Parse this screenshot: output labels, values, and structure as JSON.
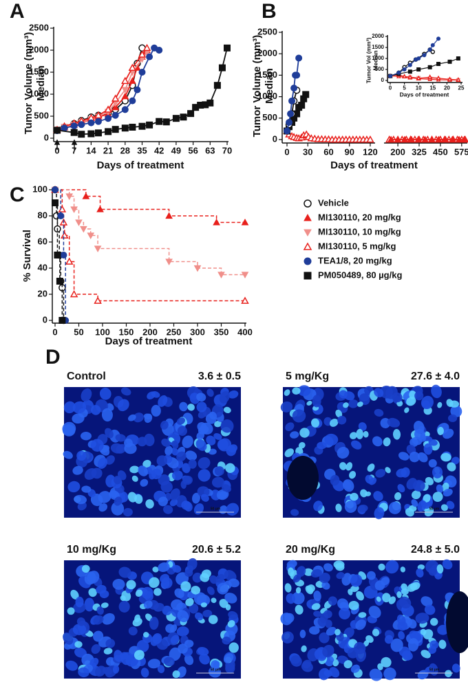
{
  "chart_data": [
    {
      "type": "line",
      "panel": "A",
      "ylabel": "Tumor Volume (mm³)",
      "ylabel2": "Median",
      "xlabel": "Days of treatment",
      "xlim": [
        0,
        70
      ],
      "xticks": [
        0,
        7,
        14,
        21,
        28,
        35,
        42,
        49,
        56,
        63,
        70
      ],
      "ylim": [
        0,
        2500
      ],
      "yticks": [
        0,
        500,
        1000,
        1500,
        2000,
        2500
      ],
      "series": [
        {
          "marker": "circle-open",
          "color": "#111111",
          "x": [
            0,
            3,
            7,
            10,
            14,
            17,
            21,
            24,
            28,
            31,
            33,
            35
          ],
          "values": [
            180,
            250,
            330,
            400,
            480,
            520,
            560,
            650,
            850,
            1200,
            1700,
            2050
          ]
        },
        {
          "marker": "triangle",
          "color": "#e8201c",
          "x": [
            0,
            3,
            7,
            10,
            14,
            17,
            21,
            24,
            28,
            31,
            33,
            35,
            37
          ],
          "values": [
            190,
            240,
            300,
            350,
            420,
            480,
            550,
            700,
            950,
            1300,
            1600,
            1850,
            2000
          ]
        },
        {
          "marker": "triangle-down",
          "color": "#f08f8a",
          "x": [
            0,
            3,
            7,
            10,
            14,
            17,
            21,
            24,
            28,
            31,
            35,
            37
          ],
          "values": [
            200,
            260,
            310,
            360,
            430,
            490,
            600,
            800,
            1100,
            1500,
            1800,
            1950
          ]
        },
        {
          "marker": "triangle-open",
          "color": "#e8201c",
          "x": [
            0,
            3,
            7,
            10,
            14,
            17,
            21,
            24,
            28,
            31,
            35,
            37
          ],
          "values": [
            190,
            270,
            340,
            390,
            460,
            520,
            650,
            900,
            1300,
            1600,
            1900,
            2050
          ]
        },
        {
          "marker": "circle",
          "color": "#1f3d99",
          "x": [
            0,
            3,
            7,
            10,
            14,
            17,
            21,
            24,
            28,
            31,
            33,
            35,
            38,
            40,
            42
          ],
          "values": [
            170,
            230,
            280,
            310,
            350,
            380,
            450,
            520,
            650,
            850,
            1100,
            1500,
            1850,
            2050,
            2000
          ]
        },
        {
          "marker": "square",
          "color": "#111111",
          "x": [
            0,
            7,
            10,
            14,
            17,
            21,
            24,
            28,
            31,
            35,
            38,
            42,
            45,
            49,
            52,
            55,
            57,
            59,
            61,
            63,
            66,
            68,
            70
          ],
          "values": [
            180,
            130,
            90,
            100,
            120,
            150,
            200,
            230,
            250,
            270,
            300,
            380,
            370,
            450,
            480,
            560,
            700,
            750,
            760,
            800,
            1200,
            1600,
            2050
          ]
        }
      ]
    },
    {
      "type": "line",
      "panel": "B",
      "ylabel": "Tumor Volume (mm³)",
      "ylabel2": "Median",
      "xlabel": "Days of treatment",
      "xlim_segments": [
        [
          0,
          125
        ],
        [
          135,
          600
        ]
      ],
      "xticks": [
        0,
        30,
        60,
        90,
        120,
        200,
        325,
        450,
        575
      ],
      "ylim": [
        0,
        2500
      ],
      "yticks": [
        0,
        500,
        1000,
        1500,
        2000,
        2500
      ],
      "series": [
        {
          "marker": "triangle-open",
          "color": "#e8201c",
          "x": [
            0,
            3,
            7,
            10,
            14,
            17,
            21,
            24,
            28,
            31,
            35,
            40,
            45,
            50,
            55,
            60,
            65,
            70,
            75,
            80,
            85,
            90,
            95,
            100,
            105,
            110,
            115,
            120,
            150,
            175,
            200,
            225,
            250,
            275,
            300,
            325,
            350,
            375,
            400,
            425,
            450,
            475,
            500,
            525,
            550,
            575,
            595
          ],
          "values": [
            200,
            120,
            80,
            60,
            40,
            30,
            50,
            100,
            120,
            60,
            30,
            20,
            10,
            10,
            5,
            5,
            0,
            0,
            0,
            0,
            0,
            0,
            0,
            0,
            0,
            0,
            0,
            0,
            0,
            0,
            0,
            0,
            0,
            0,
            0,
            0,
            0,
            0,
            0,
            0,
            0,
            0,
            0,
            0,
            0,
            0,
            0
          ]
        },
        {
          "marker": "triangle",
          "color": "#e8201c",
          "x": [
            160,
            200,
            240,
            280,
            320,
            360,
            400,
            440,
            480,
            520,
            560,
            590
          ],
          "values": [
            0,
            0,
            0,
            0,
            0,
            0,
            0,
            0,
            0,
            0,
            0,
            0
          ]
        },
        {
          "marker": "square",
          "color": "#111111",
          "x": [
            0,
            3,
            7,
            10,
            14,
            17,
            21,
            24,
            27
          ],
          "values": [
            200,
            300,
            400,
            500,
            600,
            750,
            800,
            950,
            1050
          ]
        },
        {
          "marker": "circle-open",
          "color": "#111111",
          "x": [
            0,
            3,
            7,
            10,
            14
          ],
          "values": [
            200,
            350,
            600,
            900,
            1150
          ]
        },
        {
          "marker": "circle",
          "color": "#1f3d99",
          "x": [
            0,
            3,
            5,
            7,
            10,
            12,
            14,
            17
          ],
          "values": [
            200,
            400,
            600,
            900,
            1200,
            1500,
            1500,
            1900
          ]
        }
      ]
    },
    {
      "type": "line",
      "panel": "inset",
      "ylabel": "Tumor Vol (mm³)",
      "ylabel2": "Median",
      "xlabel": "Days of treatment",
      "xlim": [
        0,
        25
      ],
      "xticks": [
        0,
        5,
        10,
        15,
        20,
        25
      ],
      "ylim": [
        0,
        2000
      ],
      "yticks": [
        0,
        500,
        1000,
        1500,
        2000
      ],
      "series": [
        {
          "marker": "triangle",
          "color": "#e8201c",
          "x": [
            0,
            3,
            7,
            10,
            14,
            17,
            21,
            24
          ],
          "values": [
            200,
            180,
            120,
            80,
            50,
            30,
            20,
            10
          ]
        },
        {
          "marker": "triangle-down",
          "color": "#f08f8a",
          "x": [
            0,
            3,
            7,
            10,
            14,
            17,
            21,
            24
          ],
          "values": [
            200,
            200,
            150,
            120,
            90,
            60,
            40,
            20
          ]
        },
        {
          "marker": "triangle-open",
          "color": "#e8201c",
          "x": [
            0,
            3,
            5,
            7,
            10,
            14,
            17,
            21,
            24
          ],
          "values": [
            200,
            250,
            180,
            150,
            100,
            150,
            100,
            50,
            30
          ]
        },
        {
          "marker": "square",
          "color": "#111111",
          "x": [
            0,
            3,
            7,
            10,
            14,
            17,
            21,
            24
          ],
          "values": [
            200,
            300,
            400,
            500,
            600,
            750,
            850,
            1000
          ]
        },
        {
          "marker": "circle-open",
          "color": "#111111",
          "x": [
            0,
            3,
            5,
            7,
            9,
            12,
            14,
            15
          ],
          "values": [
            200,
            350,
            600,
            800,
            950,
            1200,
            1400,
            1300
          ]
        },
        {
          "marker": "circle",
          "color": "#1f3d99",
          "x": [
            0,
            3,
            5,
            7,
            9,
            10,
            12,
            14,
            15,
            17
          ],
          "values": [
            200,
            350,
            500,
            700,
            950,
            1000,
            1150,
            1400,
            1600,
            1900
          ]
        }
      ]
    },
    {
      "type": "survival",
      "panel": "C",
      "ylabel": "% Survival",
      "xlabel": "Days of treatment",
      "line_style": "dashed",
      "xlim": [
        0,
        400
      ],
      "xticks": [
        0,
        50,
        100,
        150,
        200,
        250,
        300,
        350,
        400
      ],
      "ylim": [
        0,
        100
      ],
      "yticks": [
        0,
        20,
        40,
        60,
        80,
        100
      ],
      "series": [
        {
          "name": "Vehicle",
          "marker": "circle-open",
          "color": "#111111",
          "x": [
            0,
            3,
            5,
            9,
            12,
            15,
            18
          ],
          "values": [
            100,
            80,
            70,
            50,
            30,
            25,
            0
          ]
        },
        {
          "name": "MI130110, 20 mg/kg",
          "marker": "triangle",
          "color": "#e8201c",
          "x": [
            0,
            65,
            95,
            240,
            340,
            400
          ],
          "values": [
            100,
            95,
            85,
            80,
            75,
            75
          ]
        },
        {
          "name": "MI130110, 10 mg/kg",
          "marker": "triangle-down",
          "color": "#f08f8a",
          "x": [
            0,
            30,
            40,
            50,
            60,
            75,
            90,
            240,
            300,
            350,
            400
          ],
          "values": [
            100,
            95,
            85,
            75,
            70,
            65,
            55,
            45,
            40,
            35,
            35
          ]
        },
        {
          "name": "MI130110, 5 mg/kg",
          "marker": "triangle-open",
          "color": "#e8201c",
          "x": [
            0,
            15,
            18,
            20,
            30,
            40,
            90,
            400
          ],
          "values": [
            100,
            85,
            75,
            65,
            45,
            20,
            15,
            15
          ]
        },
        {
          "name": "TEA1/8, 20 mg/kg",
          "marker": "circle",
          "color": "#1f3d99",
          "x": [
            0,
            12,
            18,
            22
          ],
          "values": [
            100,
            80,
            50,
            0
          ]
        },
        {
          "name": "PM050489, 80 µg/kg",
          "marker": "square",
          "color": "#111111",
          "x": [
            0,
            5,
            10,
            15
          ],
          "values": [
            90,
            50,
            30,
            0
          ]
        }
      ]
    }
  ],
  "panel_d": {
    "panel": "D",
    "scale_bar": "50 μm",
    "images": [
      {
        "label": "Control",
        "value": "3.6 ± 0.5"
      },
      {
        "label": "5 mg/Kg",
        "value": "27.6 ± 4.0"
      },
      {
        "label": "10 mg/Kg",
        "value": "20.6 ± 5.2"
      },
      {
        "label": "20 mg/Kg",
        "value": "24.8 ± 5.0"
      }
    ]
  }
}
